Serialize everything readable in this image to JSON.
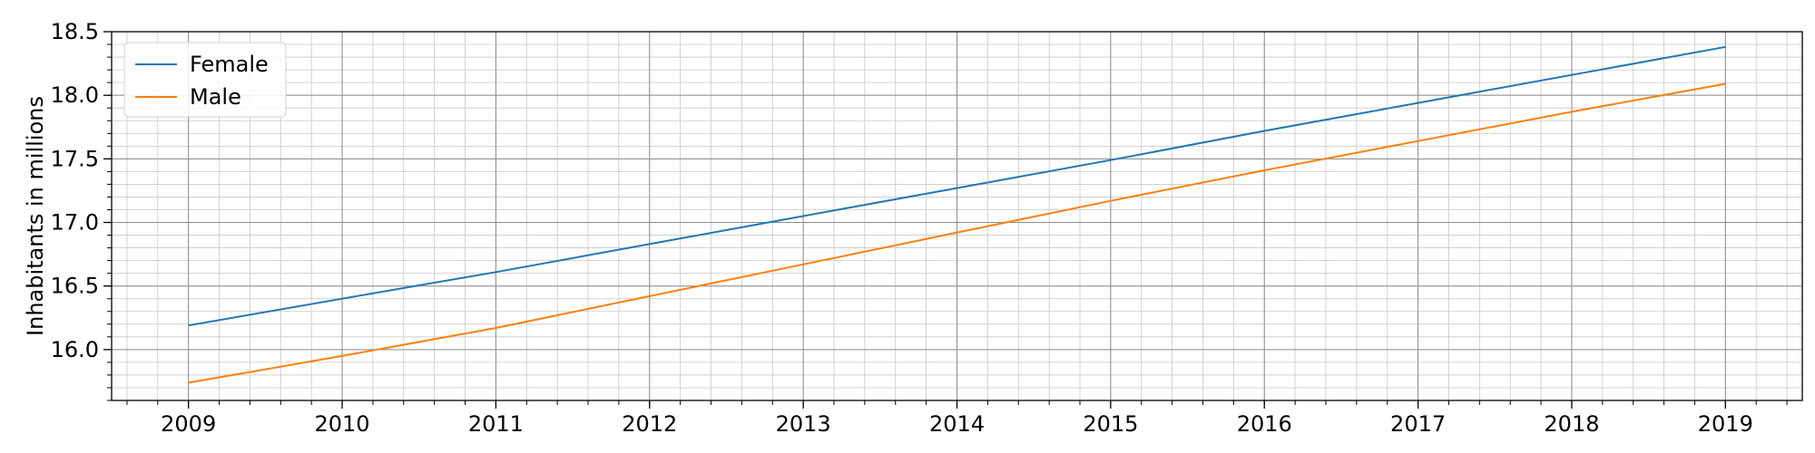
{
  "chart_data": {
    "type": "line",
    "xlabel": "",
    "ylabel": "Inhabitants in millions",
    "x": [
      2009,
      2010,
      2011,
      2012,
      2013,
      2014,
      2015,
      2016,
      2017,
      2018,
      2019
    ],
    "xlim": [
      2008.5,
      2019.5
    ],
    "ylim": [
      15.6,
      18.5
    ],
    "x_ticks": [
      2009,
      2010,
      2011,
      2012,
      2013,
      2014,
      2015,
      2016,
      2017,
      2018,
      2019
    ],
    "x_tick_labels": [
      "2009",
      "2010",
      "2011",
      "2012",
      "2013",
      "2014",
      "2015",
      "2016",
      "2017",
      "2018",
      "2019"
    ],
    "y_ticks": [
      16.0,
      16.5,
      17.0,
      17.5,
      18.0,
      18.5
    ],
    "y_tick_labels": [
      "16.0",
      "16.5",
      "17.0",
      "17.5",
      "18.0",
      "18.5"
    ],
    "grid": true,
    "minor_grid": true,
    "legend_position": "top-left",
    "series": [
      {
        "name": "Female",
        "color": "#1f77b4",
        "values": [
          16.19,
          16.4,
          16.61,
          16.83,
          17.05,
          17.27,
          17.49,
          17.72,
          17.94,
          18.16,
          18.38
        ]
      },
      {
        "name": "Male",
        "color": "#ff7f0e",
        "values": [
          15.74,
          15.95,
          16.17,
          16.42,
          16.67,
          16.92,
          17.17,
          17.41,
          17.64,
          17.87,
          18.09
        ]
      }
    ]
  }
}
